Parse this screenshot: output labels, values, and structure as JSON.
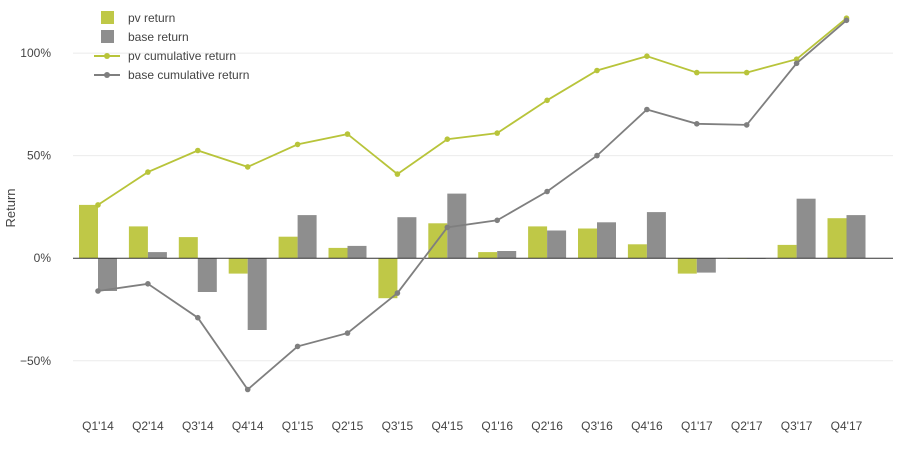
{
  "colors": {
    "pv": "#bfc847",
    "base": "#8e8e8e",
    "pv_line": "#b8c43a",
    "base_line": "#7f7f7f",
    "grid": "#ebebeb",
    "zero": "#333333",
    "text": "#444444"
  },
  "chart_data": {
    "type": "bar+line",
    "title": "",
    "xlabel": "",
    "ylabel": "Return",
    "ylim": [
      -74,
      121
    ],
    "yticks": [
      {
        "value": -50,
        "label": "−50%"
      },
      {
        "value": 0,
        "label": "0%"
      },
      {
        "value": 50,
        "label": "50%"
      },
      {
        "value": 100,
        "label": "100%"
      }
    ],
    "grid": true,
    "legend_position": "top-left",
    "categories": [
      "Q1'14",
      "Q2'14",
      "Q3'14",
      "Q4'14",
      "Q1'15",
      "Q2'15",
      "Q3'15",
      "Q4'15",
      "Q1'16",
      "Q2'16",
      "Q3'16",
      "Q4'16",
      "Q1'17",
      "Q2'17",
      "Q3'17",
      "Q4'17"
    ],
    "bar_series": [
      {
        "name": "pv return",
        "color_key": "pv",
        "values": [
          26,
          15.5,
          10.3,
          -7.5,
          10.5,
          5,
          -19.5,
          17,
          3,
          15.5,
          14.5,
          6.8,
          -7.5,
          0,
          6.5,
          19.5
        ]
      },
      {
        "name": "base return",
        "color_key": "base",
        "values": [
          -16,
          3,
          -16.5,
          -35,
          21,
          6,
          20,
          31.5,
          3.5,
          13.5,
          17.5,
          22.5,
          -7,
          -0.3,
          29,
          21
        ]
      }
    ],
    "line_series": [
      {
        "name": "pv cumulative return",
        "color_key": "pv_line",
        "values": [
          26,
          42,
          52.5,
          44.5,
          55.5,
          60.5,
          41,
          58,
          61,
          77,
          91.5,
          98.5,
          90.5,
          90.5,
          97,
          117
        ]
      },
      {
        "name": "base cumulative return",
        "color_key": "base_line",
        "values": [
          -16,
          -12.5,
          -29,
          -64,
          -43,
          -36.5,
          -17,
          15,
          18.5,
          32.5,
          50,
          72.5,
          65.5,
          65,
          95,
          116
        ]
      }
    ]
  }
}
